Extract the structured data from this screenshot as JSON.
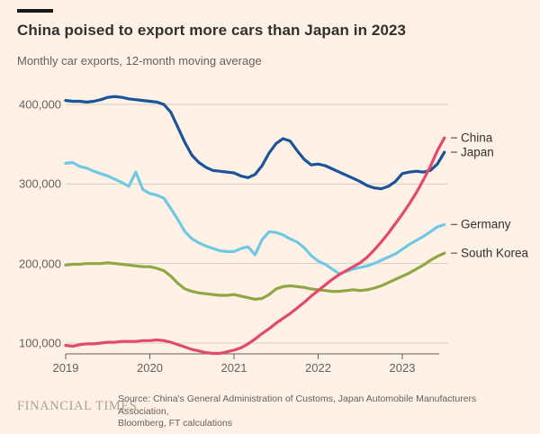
{
  "header": {
    "title": "China poised to export more cars than Japan in 2023",
    "subtitle": "Monthly car exports, 12-month moving average"
  },
  "footer": {
    "brand": "FINANCIAL TIMES",
    "source_line1": "Source: China's General Administration of Customs, Japan Automobile Manufacturers Association,",
    "source_line2": "Bloomberg, FT calculations"
  },
  "chart_data": {
    "type": "line",
    "title": "China poised to export more cars than Japan in 2023",
    "subtitle": "Monthly car exports, 12-month moving average",
    "x_start_year": 2019,
    "x_step_months": 1,
    "x_end_label_note": "data runs Jan 2019 to Jul 2023",
    "x_ticks": [
      2019,
      2020,
      2021,
      2022,
      2023
    ],
    "x_tick_labels": [
      "2019",
      "2020",
      "2021",
      "2022",
      "2023"
    ],
    "y_ticks": [
      400000,
      300000,
      200000,
      100000
    ],
    "y_tick_labels": [
      "400,000",
      "300,000",
      "200,000",
      "100,000"
    ],
    "ylim": [
      80000,
      415000
    ],
    "grid": "horizontal-only",
    "legend_position": "right-of-line-ends",
    "unit_scale": 1000,
    "colors": {
      "background": "#FFF1E5",
      "gridline": "#D6CDC1",
      "axis": "#66605C",
      "text_dark": "#33302E",
      "text_muted": "#66605C"
    },
    "series": [
      {
        "name": "China",
        "color": "#E24A6C",
        "values_thousands": [
          97,
          96,
          98,
          99,
          99,
          100,
          101,
          101,
          102,
          102,
          102,
          103,
          103,
          104,
          103,
          101,
          98,
          95,
          92,
          90,
          88,
          87,
          87,
          89,
          91,
          94,
          99,
          105,
          112,
          118,
          125,
          131,
          137,
          144,
          151,
          159,
          166,
          173,
          180,
          186,
          191,
          196,
          201,
          208,
          217,
          227,
          238,
          250,
          262,
          275,
          289,
          305,
          322,
          342,
          358
        ]
      },
      {
        "name": "Japan",
        "color": "#1A549B",
        "values_thousands": [
          405,
          404,
          404,
          403,
          404,
          406,
          409,
          410,
          409,
          407,
          406,
          405,
          404,
          403,
          400,
          390,
          371,
          352,
          336,
          327,
          321,
          317,
          316,
          315,
          314,
          310,
          308,
          312,
          323,
          339,
          351,
          357,
          354,
          342,
          331,
          324,
          325,
          323,
          319,
          315,
          311,
          307,
          303,
          298,
          295,
          294,
          297,
          303,
          313,
          315,
          316,
          315,
          317,
          325,
          340
        ]
      },
      {
        "name": "Germany",
        "color": "#70C9E4",
        "values_thousands": [
          326,
          327,
          322,
          320,
          316,
          313,
          310,
          306,
          302,
          297,
          315,
          293,
          288,
          286,
          282,
          269,
          255,
          240,
          231,
          226,
          222,
          219,
          216,
          215,
          215,
          219,
          221,
          211,
          230,
          240,
          239,
          236,
          231,
          227,
          220,
          210,
          203,
          199,
          193,
          187,
          190,
          193,
          195,
          197,
          200,
          204,
          208,
          212,
          218,
          224,
          229,
          234,
          240,
          246,
          249
        ]
      },
      {
        "name": "South Korea",
        "color": "#90A744",
        "values_thousands": [
          198,
          199,
          199,
          200,
          200,
          200,
          201,
          200,
          199,
          198,
          197,
          196,
          196,
          194,
          191,
          184,
          175,
          168,
          165,
          163,
          162,
          161,
          160,
          160,
          161,
          159,
          157,
          155,
          156,
          161,
          168,
          171,
          172,
          171,
          170,
          168,
          167,
          166,
          165,
          165,
          166,
          167,
          166,
          167,
          169,
          172,
          176,
          180,
          184,
          188,
          193,
          198,
          204,
          209,
          213
        ]
      }
    ]
  }
}
